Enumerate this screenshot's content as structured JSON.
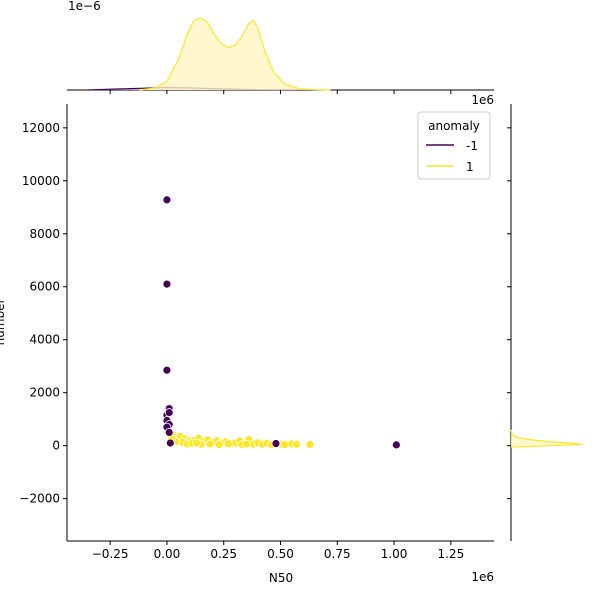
{
  "chart_data": {
    "type": "scatter",
    "title": "",
    "xlabel": "N50",
    "ylabel": "number",
    "x_offset_text": "1e6",
    "y_offset_text": "1e6",
    "top_offset_text": "1e−6",
    "xlim": [
      -0.44,
      1.44
    ],
    "ylim": [
      -3600,
      12900
    ],
    "x_ticks": [
      -0.25,
      0.0,
      0.25,
      0.5,
      0.75,
      1.0,
      1.25
    ],
    "x_tick_labels": [
      "−0.25",
      "0.00",
      "0.25",
      "0.50",
      "0.75",
      "1.00",
      "1.25"
    ],
    "y_ticks": [
      -2000,
      0,
      2000,
      4000,
      6000,
      8000,
      10000,
      12000
    ],
    "y_tick_labels": [
      "−2000",
      "0",
      "2000",
      "4000",
      "6000",
      "8000",
      "10000",
      "12000"
    ],
    "grid": false,
    "legend": {
      "title": "anomaly",
      "placement": "upper right",
      "entries": [
        {
          "label": "-1",
          "color": "#440154"
        },
        {
          "label": "1",
          "color": "#fde725"
        }
      ]
    },
    "series": [
      {
        "name": "-1",
        "color": "#440154",
        "points": [
          [
            0.0,
            9280
          ],
          [
            0.0,
            6100
          ],
          [
            0.0,
            2850
          ],
          [
            0.01,
            1400
          ],
          [
            0.0,
            1150
          ],
          [
            0.01,
            1250
          ],
          [
            0.0,
            950
          ],
          [
            0.01,
            800
          ],
          [
            0.0,
            700
          ],
          [
            0.01,
            500
          ],
          [
            0.015,
            100
          ],
          [
            0.48,
            80
          ],
          [
            1.01,
            30
          ]
        ]
      },
      {
        "name": "1",
        "color": "#fde725",
        "points": [
          [
            0.03,
            380
          ],
          [
            0.05,
            300
          ],
          [
            0.06,
            350
          ],
          [
            0.08,
            250
          ],
          [
            0.1,
            180
          ],
          [
            0.07,
            120
          ],
          [
            0.12,
            200
          ],
          [
            0.14,
            280
          ],
          [
            0.16,
            150
          ],
          [
            0.18,
            220
          ],
          [
            0.2,
            120
          ],
          [
            0.22,
            180
          ],
          [
            0.24,
            90
          ],
          [
            0.26,
            150
          ],
          [
            0.28,
            60
          ],
          [
            0.3,
            100
          ],
          [
            0.32,
            180
          ],
          [
            0.34,
            80
          ],
          [
            0.36,
            230
          ],
          [
            0.38,
            60
          ],
          [
            0.4,
            110
          ],
          [
            0.42,
            50
          ],
          [
            0.44,
            90
          ],
          [
            0.46,
            40
          ],
          [
            0.5,
            60
          ],
          [
            0.52,
            40
          ],
          [
            0.55,
            70
          ],
          [
            0.57,
            50
          ],
          [
            0.63,
            40
          ],
          [
            0.09,
            60
          ],
          [
            0.11,
            90
          ],
          [
            0.15,
            50
          ],
          [
            0.19,
            60
          ],
          [
            0.23,
            40
          ],
          [
            0.27,
            70
          ],
          [
            0.33,
            40
          ],
          [
            0.35,
            60
          ],
          [
            0.04,
            150
          ],
          [
            0.02,
            250
          ],
          [
            0.13,
            100
          ]
        ]
      }
    ],
    "marginal_x": {
      "description": "KDE of N50 by anomaly",
      "series": [
        {
          "name": "1",
          "color": "#fde725",
          "fill": "#fff5c2",
          "x": [
            -0.12,
            -0.05,
            0.0,
            0.05,
            0.09,
            0.12,
            0.15,
            0.18,
            0.21,
            0.24,
            0.27,
            0.3,
            0.33,
            0.36,
            0.38,
            0.4,
            0.43,
            0.47,
            0.52,
            0.58,
            0.65,
            0.72
          ],
          "density": [
            0.0,
            0.03,
            0.12,
            0.42,
            0.78,
            0.97,
            1.0,
            0.93,
            0.77,
            0.64,
            0.59,
            0.62,
            0.74,
            0.92,
            0.97,
            0.86,
            0.55,
            0.24,
            0.08,
            0.02,
            0.005,
            0.0
          ]
        },
        {
          "name": "-1",
          "color": "#440154",
          "fill": "#d8cde0",
          "x": [
            -0.35,
            -0.2,
            -0.1,
            0.0,
            0.1,
            0.2,
            0.3,
            0.4,
            0.5,
            0.6
          ],
          "density": [
            0.0,
            0.015,
            0.025,
            0.035,
            0.03,
            0.02,
            0.012,
            0.005,
            0.002,
            0.0
          ]
        }
      ]
    },
    "marginal_y": {
      "description": "KDE of number by anomaly",
      "series": [
        {
          "name": "1",
          "color": "#fde725",
          "fill": "#fff5c2",
          "y": [
            -60,
            0,
            50,
            100,
            150,
            200,
            250,
            300,
            400,
            600
          ],
          "density": [
            0.0,
            0.55,
            1.0,
            0.8,
            0.55,
            0.35,
            0.2,
            0.1,
            0.02,
            0.0
          ]
        }
      ]
    }
  }
}
